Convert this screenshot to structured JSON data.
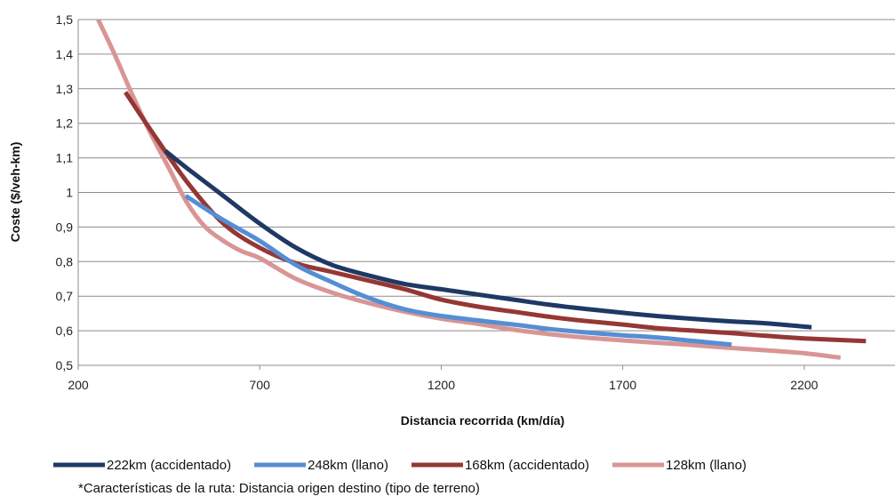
{
  "chart_data": {
    "type": "line",
    "xlabel": "Distancia recorrida (km/día)",
    "ylabel": "Coste ($/veh-km)",
    "xlim": [
      200,
      2450
    ],
    "ylim": [
      0.5,
      1.5
    ],
    "x_ticks": [
      "200",
      "700",
      "1200",
      "1700",
      "2200"
    ],
    "x_tick_values": [
      200,
      700,
      1200,
      1700,
      2200
    ],
    "y_ticks": [
      "0,5",
      "0,6",
      "0,7",
      "0,8",
      "0,9",
      "1",
      "1,1",
      "1,2",
      "1,3",
      "1,4",
      "1,5"
    ],
    "y_tick_values": [
      0.5,
      0.6,
      0.7,
      0.8,
      0.9,
      1.0,
      1.1,
      1.2,
      1.3,
      1.4,
      1.5
    ],
    "grid": "horizontal",
    "legend_position": "bottom",
    "series": [
      {
        "name": "222km (accidentado)",
        "color": "#1f3864",
        "x": [
          440,
          500,
          600,
          700,
          800,
          900,
          1000,
          1100,
          1200,
          1300,
          1400,
          1500,
          1600,
          1700,
          1800,
          1900,
          2000,
          2100,
          2220
        ],
        "y": [
          1.12,
          1.07,
          0.99,
          0.91,
          0.84,
          0.79,
          0.76,
          0.735,
          0.72,
          0.705,
          0.69,
          0.675,
          0.663,
          0.652,
          0.642,
          0.634,
          0.627,
          0.621,
          0.61
        ]
      },
      {
        "name": "248km (llano)",
        "color": "#558ed5",
        "x": [
          496,
          600,
          700,
          800,
          900,
          1000,
          1100,
          1200,
          1300,
          1400,
          1500,
          1600,
          1700,
          1800,
          1900,
          2000
        ],
        "y": [
          0.99,
          0.92,
          0.86,
          0.79,
          0.74,
          0.695,
          0.662,
          0.643,
          0.63,
          0.618,
          0.605,
          0.595,
          0.587,
          0.58,
          0.57,
          0.56
        ]
      },
      {
        "name": "168km (accidentado)",
        "color": "#953735",
        "x": [
          330,
          400,
          500,
          600,
          700,
          800,
          900,
          1000,
          1100,
          1200,
          1300,
          1400,
          1500,
          1600,
          1700,
          1800,
          1900,
          2000,
          2100,
          2200,
          2370
        ],
        "y": [
          1.29,
          1.18,
          1.03,
          0.91,
          0.84,
          0.795,
          0.77,
          0.745,
          0.72,
          0.69,
          0.67,
          0.655,
          0.64,
          0.628,
          0.618,
          0.607,
          0.6,
          0.593,
          0.585,
          0.578,
          0.57
        ]
      },
      {
        "name": "128km (llano)",
        "color": "#d99594",
        "x": [
          255,
          300,
          350,
          400,
          450,
          500,
          550,
          600,
          650,
          700,
          800,
          900,
          1000,
          1100,
          1200,
          1300,
          1400,
          1500,
          1600,
          1700,
          1800,
          1900,
          2000,
          2100,
          2200,
          2300
        ],
        "y": [
          1.5,
          1.4,
          1.28,
          1.17,
          1.07,
          0.97,
          0.9,
          0.86,
          0.83,
          0.81,
          0.75,
          0.71,
          0.68,
          0.655,
          0.635,
          0.62,
          0.603,
          0.59,
          0.58,
          0.572,
          0.565,
          0.558,
          0.55,
          0.543,
          0.535,
          0.522
        ]
      }
    ],
    "footnote": "*Características de la ruta: Distancia origen destino (tipo de terreno)"
  }
}
